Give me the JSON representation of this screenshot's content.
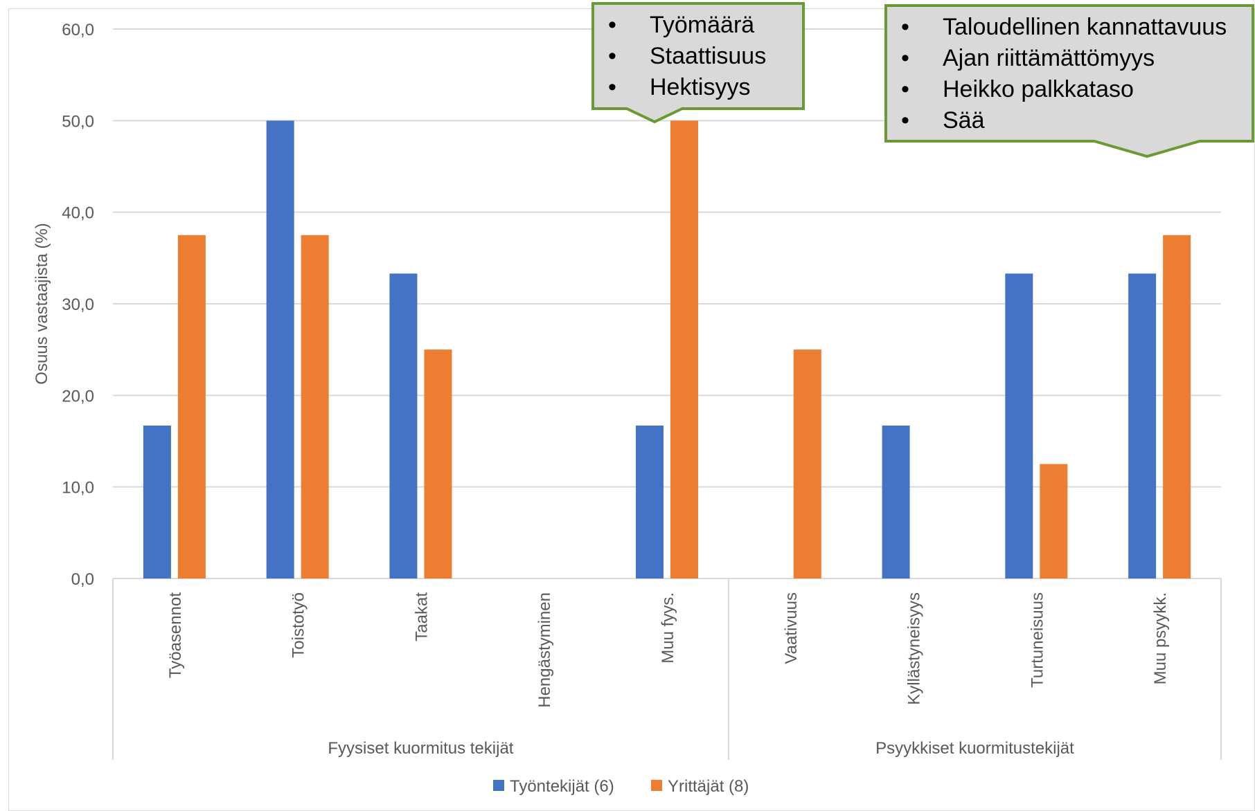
{
  "chart_data": {
    "type": "bar",
    "title": "",
    "xlabel": "",
    "ylabel": "Osuus vastaajista (%)",
    "ylim": [
      0,
      60
    ],
    "yticks": [
      "0,0",
      "10,0",
      "20,0",
      "30,0",
      "40,0",
      "50,0",
      "60,0"
    ],
    "grid": true,
    "legend_position": "bottom",
    "categories": [
      "Työasennot",
      "Toistotyö",
      "Taakat",
      "Hengästyminen",
      "Muu fyys.",
      "Vaativuus",
      "Kyllästyneisyys",
      "Turtuneisuus",
      "Muu psyykk."
    ],
    "groups": [
      {
        "label": "Fyysiset kuormitus tekijät",
        "count": 5
      },
      {
        "label": "Psyykkiset kuormitustekijät",
        "count": 4
      }
    ],
    "series": [
      {
        "name": "Työntekijät (6)",
        "color": "#4472C4",
        "values": [
          16.7,
          50.0,
          33.3,
          0,
          16.7,
          0,
          16.7,
          33.3,
          33.3
        ]
      },
      {
        "name": "Yrittäjät (8)",
        "color": "#ED7D31",
        "values": [
          37.5,
          37.5,
          25.0,
          0,
          50.0,
          25.0,
          0,
          12.5,
          37.5
        ]
      }
    ],
    "annotations": [
      {
        "items": [
          "Työmäärä",
          "Staattisuus",
          "Hektisyys"
        ],
        "points_to": "Muu fyys."
      },
      {
        "items": [
          "Taloudellinen kannattavuus",
          "Ajan riittämättömyys",
          "Heikko palkkataso",
          "Sää"
        ],
        "points_to": "Muu psyykk."
      }
    ],
    "colors": {
      "gridline": "#d9d9d9",
      "callout_fill": "#d9d9d9",
      "callout_border": "#6a9a35",
      "text": "#595959"
    }
  }
}
